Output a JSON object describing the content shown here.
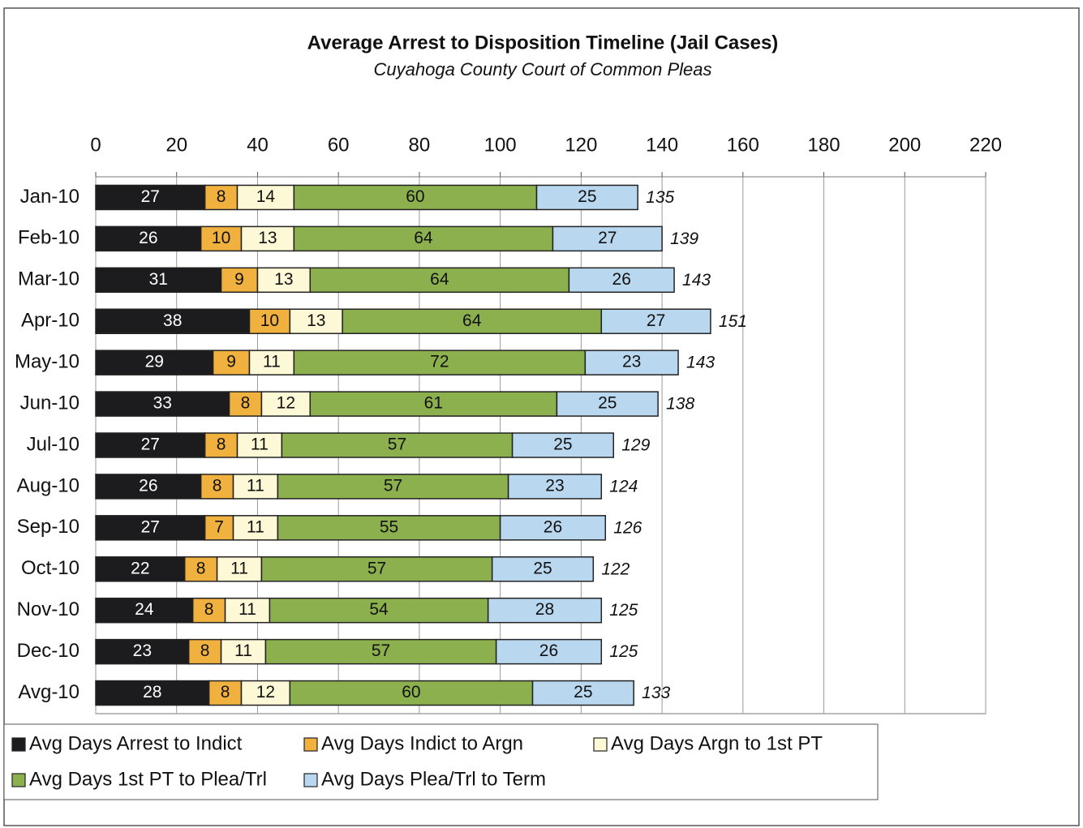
{
  "chart_data": {
    "type": "stacked-bar-horizontal",
    "title": "Average Arrest to Disposition Timeline (Jail Cases)",
    "subtitle": "Cuyahoga County Court of Common Pleas",
    "categories": [
      "Jan-10",
      "Feb-10",
      "Mar-10",
      "Apr-10",
      "May-10",
      "Jun-10",
      "Jul-10",
      "Aug-10",
      "Sep-10",
      "Oct-10",
      "Nov-10",
      "Dec-10",
      "Avg-10"
    ],
    "series": [
      {
        "name": "Avg Days Arrest to Indict",
        "color": "#1c1c1e",
        "values": [
          27,
          26,
          31,
          38,
          29,
          33,
          27,
          26,
          27,
          22,
          24,
          23,
          28
        ]
      },
      {
        "name": "Avg Days Indict to Argn",
        "color": "#f0b13f",
        "values": [
          8,
          10,
          9,
          10,
          9,
          8,
          8,
          8,
          7,
          8,
          8,
          8,
          8
        ]
      },
      {
        "name": "Avg Days Argn to 1st PT",
        "color": "#fdf8d6",
        "values": [
          14,
          13,
          13,
          13,
          11,
          12,
          11,
          11,
          11,
          11,
          11,
          11,
          12
        ]
      },
      {
        "name": "Avg Days 1st PT to Plea/Trl",
        "color": "#8db04e",
        "values": [
          60,
          64,
          64,
          64,
          72,
          61,
          57,
          57,
          55,
          57,
          54,
          57,
          60
        ]
      },
      {
        "name": "Avg Days Plea/Trl to Term",
        "color": "#b9d8f0",
        "values": [
          25,
          27,
          26,
          27,
          23,
          25,
          25,
          23,
          26,
          25,
          28,
          26,
          25
        ]
      }
    ],
    "totals": [
      135,
      139,
      143,
      151,
      143,
      138,
      129,
      124,
      126,
      122,
      125,
      125,
      133
    ],
    "xlim": [
      0,
      220
    ],
    "xticks": [
      0,
      20,
      40,
      60,
      80,
      100,
      120,
      140,
      160,
      180,
      200,
      220
    ],
    "grid": true
  }
}
